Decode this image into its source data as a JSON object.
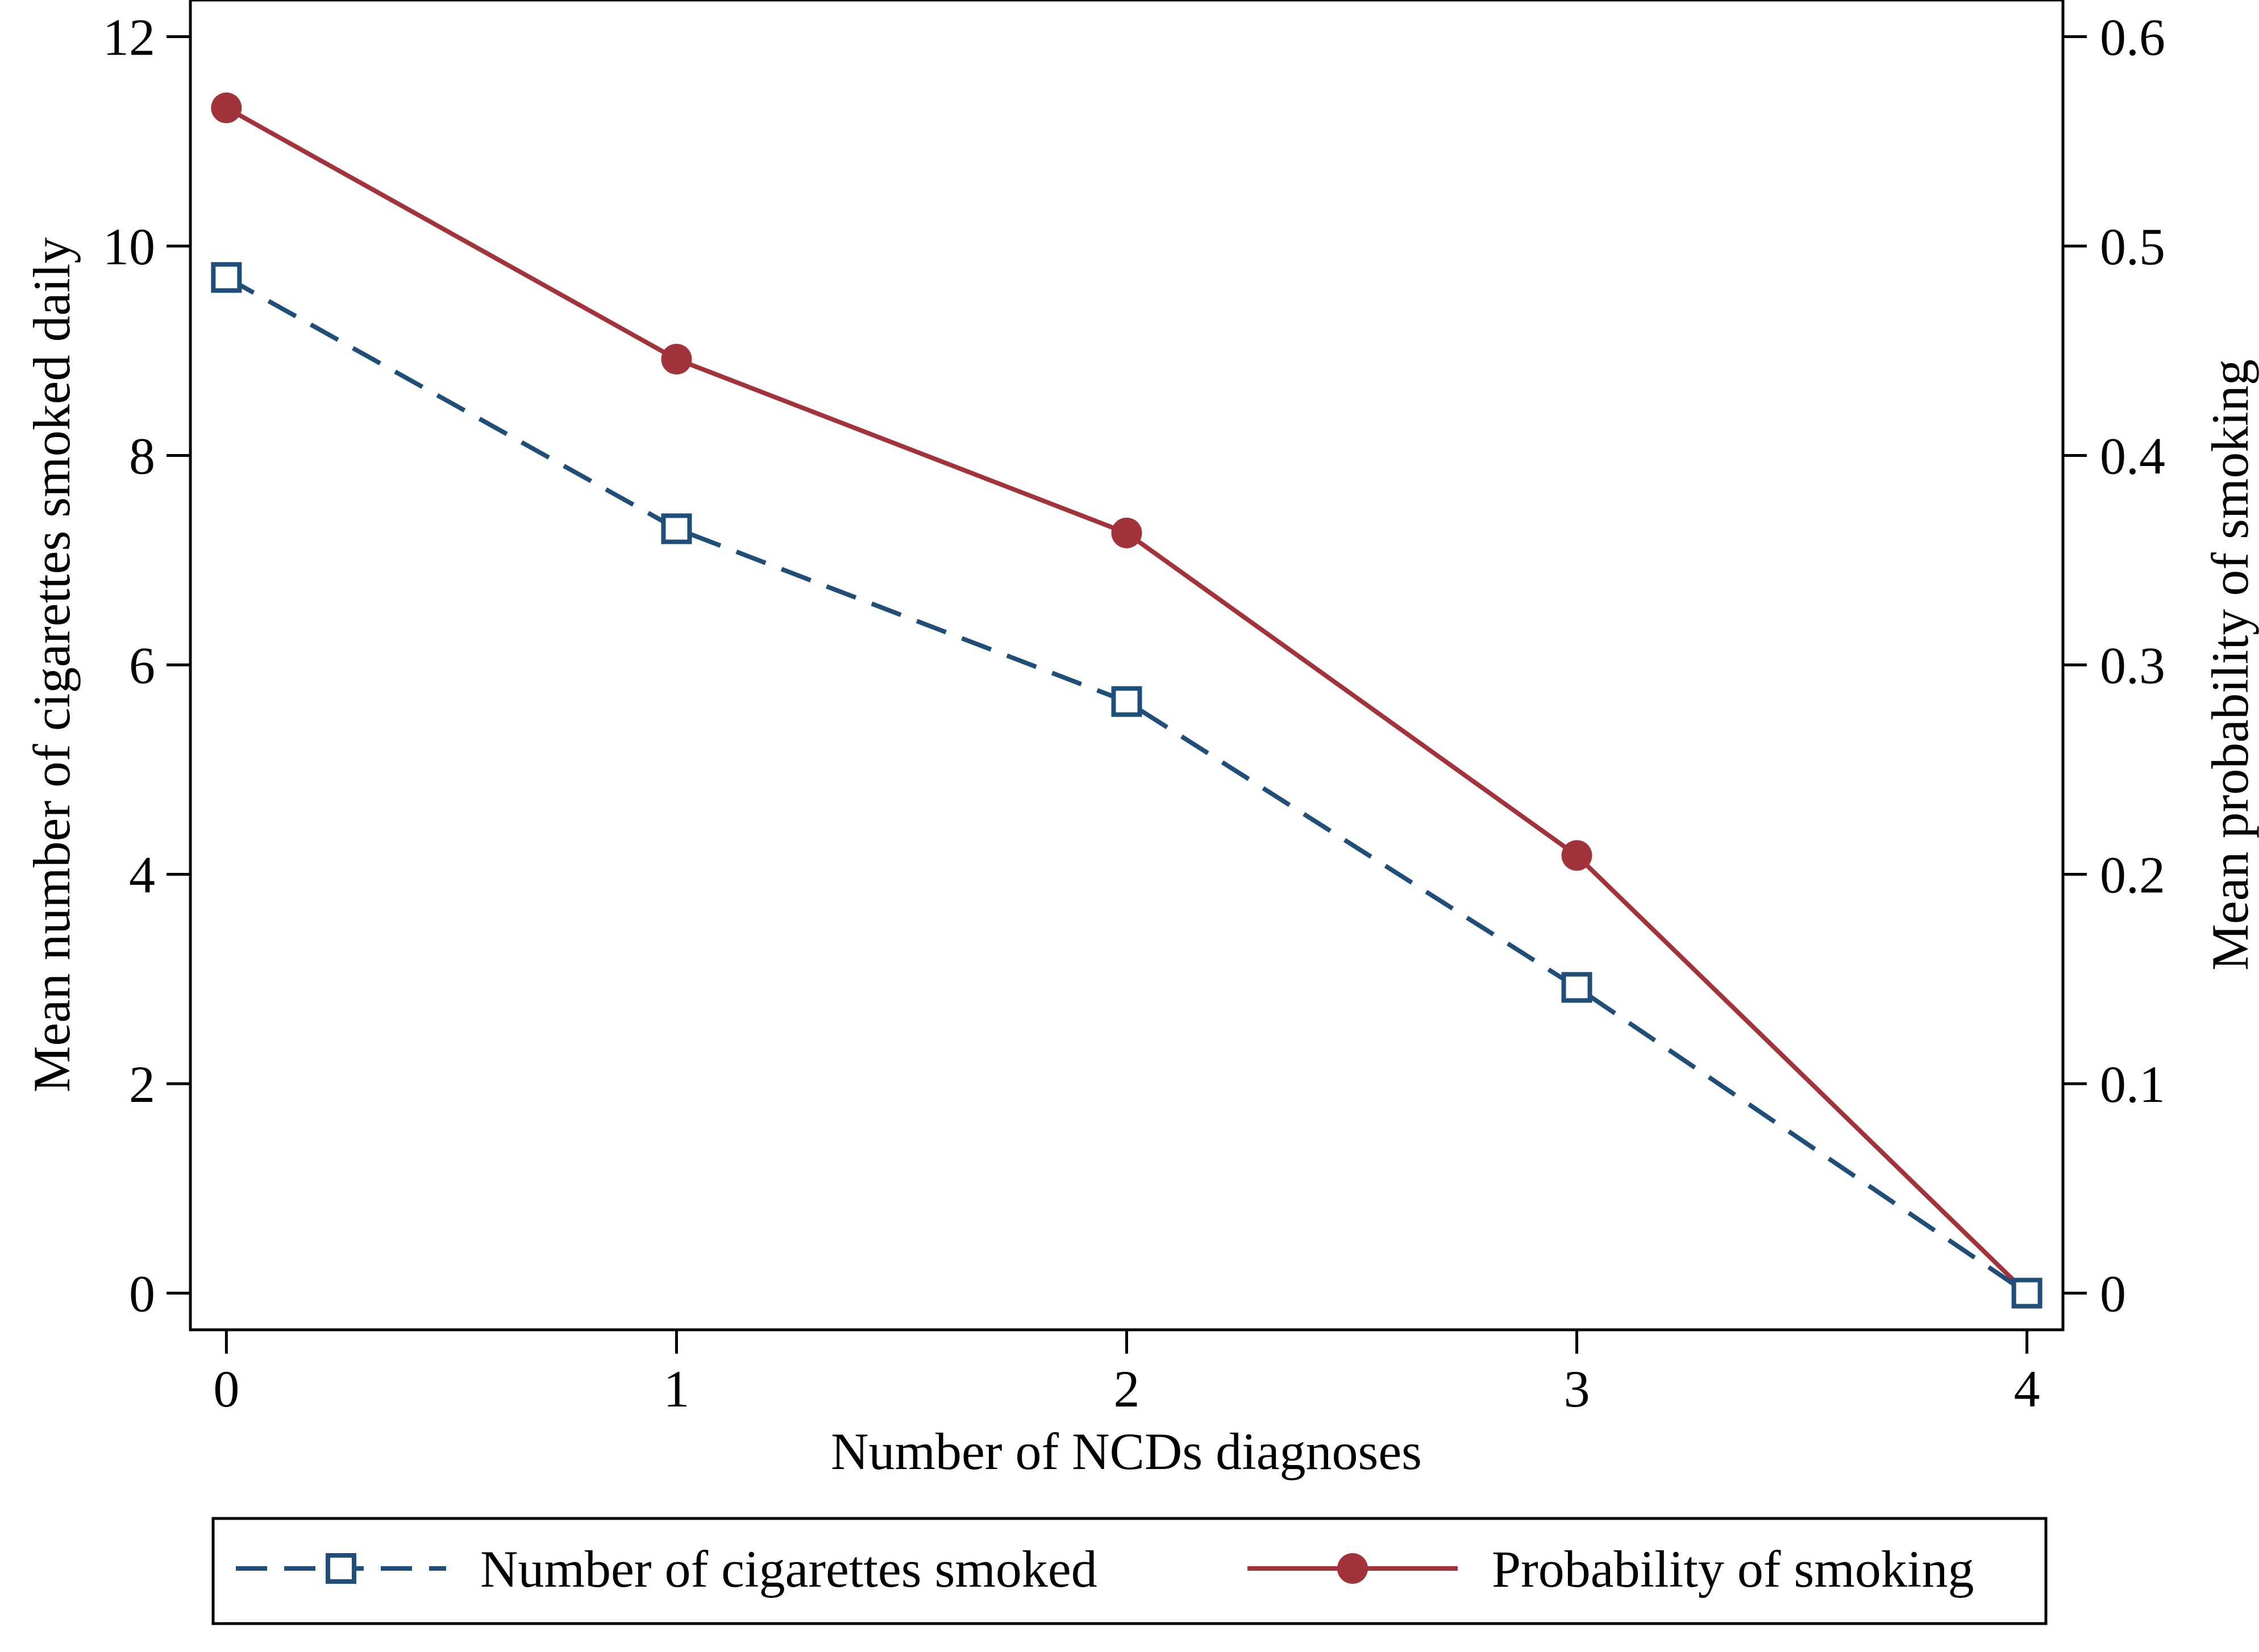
{
  "chart_data": {
    "type": "line",
    "title": "",
    "xlabel": "Number of NCDs diagnoses",
    "ylabel": "Mean number of cigarettes smoked daily",
    "y2label": "Mean probability of smoking",
    "x": [
      0,
      1,
      2,
      3,
      4
    ],
    "xlim": [
      -0.08,
      4.08
    ],
    "ylim": [
      -0.35,
      12.35
    ],
    "y2lim": [
      -0.0175,
      0.6175
    ],
    "xticks": [
      "0",
      "1",
      "2",
      "3",
      "4"
    ],
    "yticks": [
      "0",
      "2",
      "4",
      "6",
      "8",
      "10",
      "12"
    ],
    "y2ticks": [
      "0",
      "0.1",
      "0.2",
      "0.3",
      "0.4",
      "0.5",
      "0.6"
    ],
    "grid": false,
    "legend_position": "bottom",
    "series": [
      {
        "name": "Number of cigarettes smoked",
        "axis": "left",
        "values": [
          9.7,
          7.3,
          5.65,
          2.92,
          0
        ],
        "color": "#1f4e79",
        "line_style": "dashed",
        "marker": "hollow-square"
      },
      {
        "name": "Probability of smoking",
        "axis": "right",
        "values": [
          0.566,
          0.446,
          0.363,
          0.209,
          0
        ],
        "color": "#a3333a",
        "line_style": "solid",
        "marker": "filled-circle"
      }
    ]
  }
}
